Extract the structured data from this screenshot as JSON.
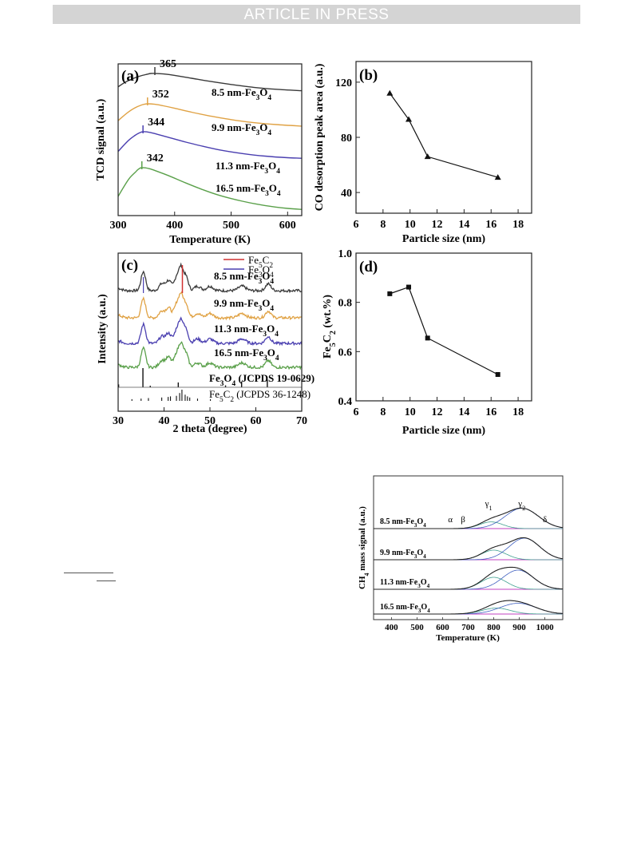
{
  "banner": {
    "text": "ARTICLE IN PRESS"
  },
  "chart_data": [
    {
      "id": "a",
      "type": "line",
      "panel_label": "(a)",
      "xlabel": "Temperature (K)",
      "ylabel": "TCD signal (a.u.)",
      "xlim": [
        300,
        625
      ],
      "xticks": [
        300,
        400,
        500,
        600
      ],
      "series": [
        {
          "name": "8.5 nm-Fe3O4",
          "peak_label": "365",
          "peak_x": 365,
          "color": "#3a3a3a",
          "x": [
            300,
            310,
            320,
            330,
            340,
            350,
            358,
            365,
            380,
            400,
            430,
            460,
            500,
            540,
            580,
            625
          ],
          "y": [
            0.72,
            0.8,
            0.86,
            0.91,
            0.95,
            0.98,
            1.0,
            1.0,
            0.99,
            0.96,
            0.9,
            0.84,
            0.77,
            0.71,
            0.67,
            0.64
          ]
        },
        {
          "name": "9.9 nm-Fe3O4",
          "peak_label": "352",
          "peak_x": 352,
          "color": "#e0a244",
          "x": [
            300,
            310,
            320,
            330,
            340,
            346,
            352,
            365,
            380,
            400,
            430,
            460,
            500,
            540,
            580,
            625
          ],
          "y": [
            0.66,
            0.76,
            0.85,
            0.92,
            0.97,
            0.99,
            1.0,
            0.99,
            0.96,
            0.91,
            0.83,
            0.76,
            0.68,
            0.62,
            0.58,
            0.55
          ]
        },
        {
          "name": "11.3 nm-Fe3O4",
          "peak_label": "344",
          "peak_x": 344,
          "color": "#4a3fb0",
          "x": [
            300,
            310,
            320,
            330,
            338,
            344,
            355,
            370,
            390,
            420,
            450,
            480,
            520,
            560,
            600,
            625
          ],
          "y": [
            0.62,
            0.74,
            0.85,
            0.93,
            0.98,
            1.0,
            0.99,
            0.95,
            0.89,
            0.8,
            0.72,
            0.65,
            0.58,
            0.53,
            0.5,
            0.49
          ]
        },
        {
          "name": "16.5 nm-Fe3O4",
          "peak_label": "342",
          "peak_x": 342,
          "color": "#5aa04a",
          "x": [
            300,
            310,
            320,
            330,
            336,
            342,
            355,
            370,
            390,
            420,
            450,
            480,
            520,
            560,
            600,
            625
          ],
          "y": [
            0.4,
            0.6,
            0.78,
            0.9,
            0.97,
            1.0,
            0.98,
            0.92,
            0.83,
            0.68,
            0.54,
            0.42,
            0.3,
            0.21,
            0.15,
            0.13
          ]
        }
      ]
    },
    {
      "id": "b",
      "type": "line",
      "panel_label": "(b)",
      "xlabel": "Particle size (nm)",
      "ylabel": "CO desorption peak area (a.u.)",
      "xlim": [
        6,
        19
      ],
      "ylim": [
        25,
        135
      ],
      "xticks": [
        6,
        8,
        10,
        12,
        14,
        16,
        18
      ],
      "yticks": [
        40,
        80,
        120
      ],
      "marker": "triangle",
      "x": [
        8.5,
        9.9,
        11.3,
        16.5
      ],
      "y": [
        112,
        93,
        66,
        51
      ]
    },
    {
      "id": "c",
      "type": "line",
      "panel_label": "(c)",
      "xlabel": "2 theta (degree)",
      "ylabel": "Intensity (a.u.)",
      "xlim": [
        30,
        70
      ],
      "xticks": [
        30,
        40,
        50,
        60,
        70
      ],
      "legend": [
        {
          "name": "Fe5C2",
          "color": "#d03030"
        },
        {
          "name": "Fe3O4",
          "color": "#4a3fb0"
        }
      ],
      "reference_lines": [
        {
          "label": "Fe3O4 (JCPDS 19-0629)",
          "x": [
            30.1,
            35.4,
            37.0,
            43.1,
            53.4,
            56.9,
            62.5
          ],
          "h": [
            0.15,
            1.0,
            0.08,
            0.25,
            0.1,
            0.3,
            0.4
          ]
        },
        {
          "label": "Fe5C2 (JCPDS 36-1248)",
          "x": [
            33.0,
            35.0,
            36.6,
            39.5,
            40.9,
            41.4,
            42.7,
            43.4,
            43.9,
            44.6,
            45.1,
            45.6,
            47.3,
            50.1
          ],
          "h": [
            0.15,
            0.2,
            0.25,
            0.3,
            0.35,
            0.4,
            0.45,
            0.7,
            1.0,
            0.55,
            0.4,
            0.3,
            0.2,
            0.15
          ]
        }
      ],
      "series": [
        {
          "name": "8.5 nm-Fe3O4",
          "color": "#3a3a3a"
        },
        {
          "name": "9.9 nm-Fe3O4",
          "color": "#e0a244"
        },
        {
          "name": "11.3 nm-Fe3O4",
          "color": "#4a3fb0"
        },
        {
          "name": "16.5 nm-Fe3O4",
          "color": "#5aa04a"
        }
      ],
      "peaks": [
        {
          "x": 30.1,
          "h": 0.1,
          "w": 0.7
        },
        {
          "x": 35.5,
          "h": 0.85,
          "w": 0.5
        },
        {
          "x": 39.5,
          "h": 0.3,
          "w": 0.6
        },
        {
          "x": 41.0,
          "h": 0.45,
          "w": 0.6
        },
        {
          "x": 42.7,
          "h": 0.55,
          "w": 0.5
        },
        {
          "x": 43.7,
          "h": 1.0,
          "w": 0.5
        },
        {
          "x": 44.8,
          "h": 0.6,
          "w": 0.5
        },
        {
          "x": 47.3,
          "h": 0.2,
          "w": 0.7
        },
        {
          "x": 50.0,
          "h": 0.2,
          "w": 0.7
        },
        {
          "x": 57.0,
          "h": 0.2,
          "w": 0.8
        },
        {
          "x": 62.7,
          "h": 0.3,
          "w": 0.6
        }
      ],
      "fe5c2_marker_x": 44.0,
      "fe3o4_marker_x": 35.5
    },
    {
      "id": "d",
      "type": "line",
      "panel_label": "(d)",
      "xlabel": "Particle size (nm)",
      "ylabel": "Fe5C2 (wt.%)",
      "xlim": [
        6,
        19
      ],
      "ylim": [
        0.4,
        1.0
      ],
      "xticks": [
        6,
        8,
        10,
        12,
        14,
        16,
        18
      ],
      "yticks": [
        0.4,
        0.6,
        0.8,
        1.0
      ],
      "ytick_labels": [
        "0.4",
        "0.6",
        "0.8",
        "1.0"
      ],
      "marker": "square",
      "x": [
        8.5,
        9.9,
        11.3,
        16.5
      ],
      "y": [
        0.835,
        0.862,
        0.655,
        0.507
      ]
    },
    {
      "id": "e",
      "type": "line",
      "xlabel": "Temperature (K)",
      "ylabel": "CH4 mass signal (a.u.)",
      "xlim": [
        330,
        1070
      ],
      "xticks": [
        400,
        500,
        600,
        700,
        800,
        900,
        1000
      ],
      "peak_labels": [
        {
          "text": "α",
          "x": 630
        },
        {
          "text": "β",
          "x": 680
        },
        {
          "text": "γ1",
          "x": 780
        },
        {
          "text": "γ2",
          "x": 910
        },
        {
          "text": "δ",
          "x": 1000
        }
      ],
      "series": [
        {
          "name": "8.5 nm-Fe3O4",
          "p1": [
            790,
            0.28,
            45
          ],
          "p2": [
            910,
            0.85,
            65
          ]
        },
        {
          "name": "9.9 nm-Fe3O4",
          "p1": [
            800,
            0.4,
            48
          ],
          "p2": [
            920,
            0.9,
            60
          ]
        },
        {
          "name": "11.3 nm-Fe3O4",
          "p1": [
            800,
            0.5,
            50
          ],
          "p2": [
            895,
            0.8,
            60
          ]
        },
        {
          "name": "16.5 nm-Fe3O4",
          "p1": [
            810,
            0.25,
            55
          ],
          "p2": [
            895,
            0.45,
            70
          ]
        }
      ]
    }
  ]
}
